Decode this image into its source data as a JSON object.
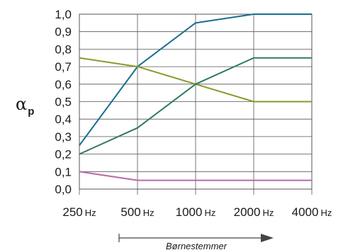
{
  "chart_data": {
    "type": "line",
    "categories": [
      "250",
      "500",
      "1000",
      "2000",
      "4000"
    ],
    "x_unit": "Hz",
    "ylim": [
      0.0,
      1.0
    ],
    "yticks": [
      "0,0",
      "0,1",
      "0,2",
      "0,3",
      "0,4",
      "0,5",
      "0,6",
      "0,7",
      "0,8",
      "0,9",
      "1,0"
    ],
    "ylabel_main": "α",
    "ylabel_sub": "p",
    "grid": true,
    "series": [
      {
        "color": "#1a6e8e",
        "values": [
          0.25,
          0.7,
          0.95,
          1.0,
          1.0
        ]
      },
      {
        "color": "#8a9a2a",
        "values": [
          0.75,
          0.7,
          0.6,
          0.5,
          0.5
        ]
      },
      {
        "color": "#2e7a5e",
        "values": [
          0.2,
          0.35,
          0.6,
          0.75,
          0.75
        ]
      },
      {
        "color": "#b86aa8",
        "values": [
          0.1,
          0.05,
          0.05,
          0.05,
          0.05
        ]
      }
    ],
    "arrow_label": "Børnestemmer"
  }
}
